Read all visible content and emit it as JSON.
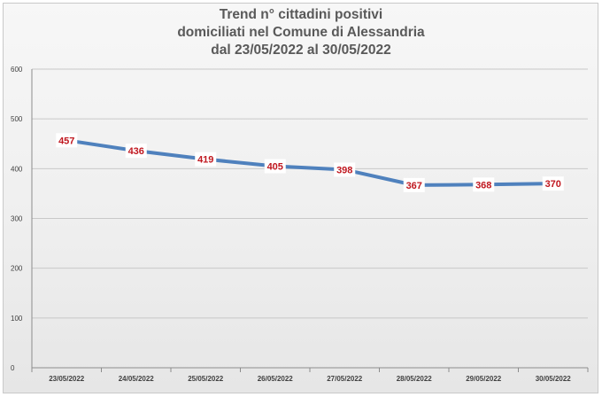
{
  "chart_data": {
    "type": "line",
    "title_lines": [
      "Trend n° cittadini positivi",
      "domiciliati nel Comune di Alessandria",
      "dal 23/05/2022 al 30/05/2022"
    ],
    "categories": [
      "23/05/2022",
      "24/05/2022",
      "25/05/2022",
      "26/05/2022",
      "27/05/2022",
      "28/05/2022",
      "29/05/2022",
      "30/05/2022"
    ],
    "values": [
      457,
      436,
      419,
      405,
      398,
      367,
      368,
      370
    ],
    "data_labels": [
      "457",
      "436",
      "419",
      "405",
      "398",
      "367",
      "368",
      "370"
    ],
    "ylim": [
      0,
      600
    ],
    "yticks": [
      0,
      100,
      200,
      300,
      400,
      500,
      600
    ],
    "ytick_labels": [
      "0",
      "100",
      "200",
      "300",
      "400",
      "500",
      "600"
    ],
    "grid": true,
    "legend": "none",
    "line_color": "#4f81bd",
    "label_color": "#c0171f"
  }
}
